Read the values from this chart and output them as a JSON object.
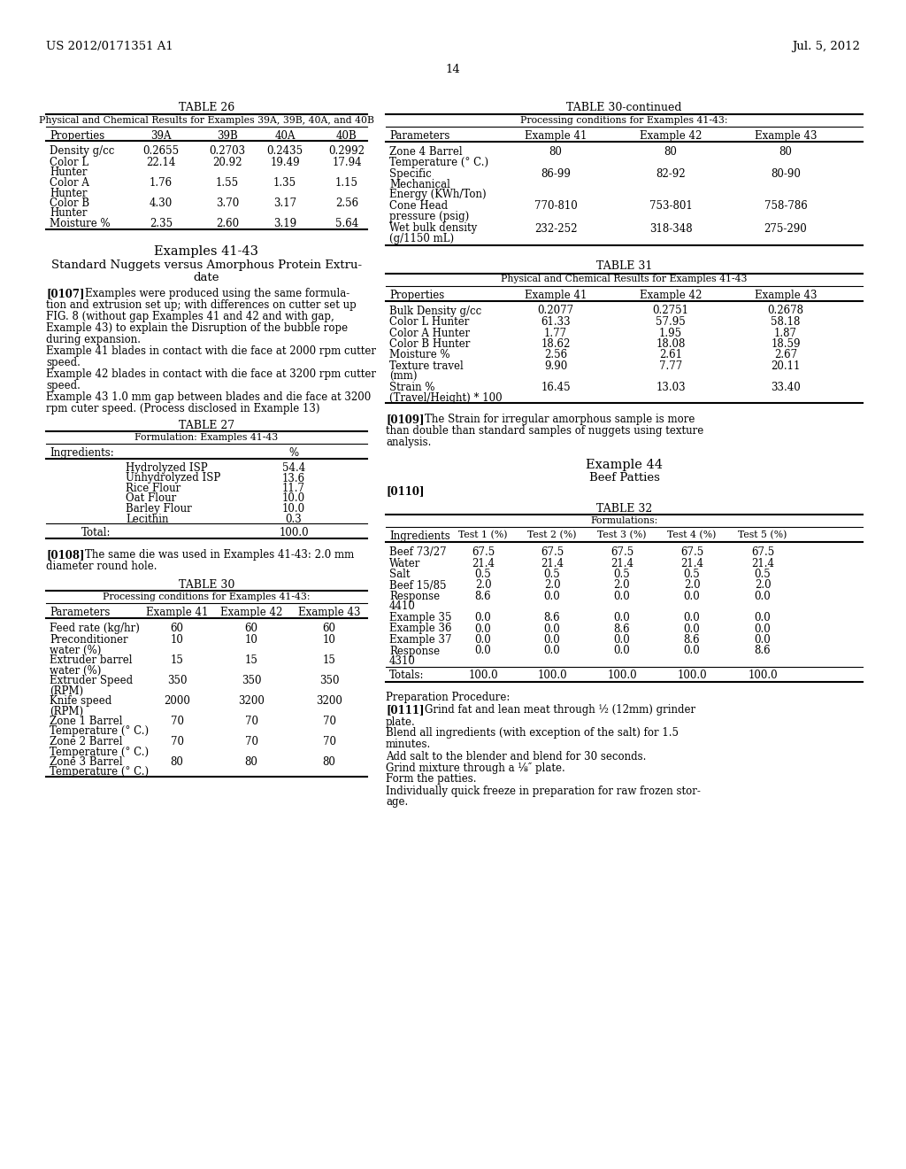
{
  "header_left": "US 2012/0171351 A1",
  "header_right": "Jul. 5, 2012",
  "page_number": "14",
  "background_color": "#ffffff",
  "text_color": "#000000",
  "table26_title": "TABLE 26",
  "table26_subtitle": "Physical and Chemical Results for Examples 39A, 39B, 40A, and 40B",
  "table26_headers": [
    "Properties",
    "39A",
    "39B",
    "40A",
    "40B"
  ],
  "table26_rows": [
    [
      "Density g/cc",
      "0.2655",
      "0.2703",
      "0.2435",
      "0.2992"
    ],
    [
      "Color L\nHunter",
      "22.14",
      "20.92",
      "19.49",
      "17.94"
    ],
    [
      "Color A\nHunter",
      "1.76",
      "1.55",
      "1.35",
      "1.15"
    ],
    [
      "Color B\nHunter",
      "4.30",
      "3.70",
      "3.17",
      "2.56"
    ],
    [
      "Moisture %",
      "2.35",
      "2.60",
      "3.19",
      "5.64"
    ]
  ],
  "section_title": "Examples 41-43",
  "section_subtitle": "Standard Nuggets versus Amorphous Protein Extru-\ndate",
  "para107_label": "[0107]",
  "para107_text": "Examples were produced using the same formula-\ntion and extrusion set up; with differences on cutter set up\nFIG. 8 (without gap Examples 41 and 42 and with gap,\nExample 43) to explain the Disruption of the bubble rope\nduring expansion.\nExample 41 blades in contact with die face at 2000 rpm cutter\nspeed.\nExample 42 blades in contact with die face at 3200 rpm cutter\nspeed.\nExample 43 1.0 mm gap between blades and die face at 3200\nrpm cuter speed. (Process disclosed in Example 13)",
  "table27_title": "TABLE 27",
  "table27_subtitle": "Formulation: Examples 41-43",
  "table27_headers": [
    "Ingredients:",
    "%"
  ],
  "table27_rows": [
    [
      "Hydrolyzed ISP",
      "54.4"
    ],
    [
      "Unhydrolyzed ISP",
      "13.6"
    ],
    [
      "Rice Flour",
      "11.7"
    ],
    [
      "Oat Flour",
      "10.0"
    ],
    [
      "Barley Flour",
      "10.0"
    ],
    [
      "Lecithin",
      "0.3"
    ]
  ],
  "table27_total": [
    "Total:",
    "100.0"
  ],
  "para108_label": "[0108]",
  "para108_text": "The same die was used in Examples 41-43: 2.0 mm\ndiameter round hole.",
  "table30_title": "TABLE 30",
  "table30_subtitle": "Processing conditions for Examples 41-43:",
  "table30_headers": [
    "Parameters",
    "Example 41",
    "Example 42",
    "Example 43"
  ],
  "table30_rows": [
    [
      "Feed rate (kg/hr)",
      "60",
      "60",
      "60"
    ],
    [
      "Preconditioner\nwater (%)",
      "10",
      "10",
      "10"
    ],
    [
      "Extruder barrel\nwater (%)",
      "15",
      "15",
      "15"
    ],
    [
      "Extruder Speed\n(RPM)",
      "350",
      "350",
      "350"
    ],
    [
      "Knife speed\n(RPM)",
      "2000",
      "3200",
      "3200"
    ],
    [
      "Zone 1 Barrel\nTemperature (° C.)",
      "70",
      "70",
      "70"
    ],
    [
      "Zone 2 Barrel\nTemperature (° C.)",
      "70",
      "70",
      "70"
    ],
    [
      "Zone 3 Barrel\nTemperature (° C.)",
      "80",
      "80",
      "80"
    ]
  ],
  "table30cont_title": "TABLE 30-continued",
  "table30cont_subtitle": "Processing conditions for Examples 41-43:",
  "table30cont_headers": [
    "Parameters",
    "Example 41",
    "Example 42",
    "Example 43"
  ],
  "table30cont_rows": [
    [
      "Zone 4 Barrel\nTemperature (° C.)",
      "80",
      "80",
      "80"
    ],
    [
      "Specific\nMechanical\nEnergy (KWh/Ton)",
      "86-99",
      "82-92",
      "80-90"
    ],
    [
      "Cone Head\npressure (psig)",
      "770-810",
      "753-801",
      "758-786"
    ],
    [
      "Wet bulk density\n(g/1150 mL)",
      "232-252",
      "318-348",
      "275-290"
    ]
  ],
  "table31_title": "TABLE 31",
  "table31_subtitle": "Physical and Chemical Results for Examples 41-43",
  "table31_headers": [
    "Properties",
    "Example 41",
    "Example 42",
    "Example 43"
  ],
  "table31_rows": [
    [
      "Bulk Density g/cc",
      "0.2077",
      "0.2751",
      "0.2678"
    ],
    [
      "Color L Hunter",
      "61.33",
      "57.95",
      "58.18"
    ],
    [
      "Color A Hunter",
      "1.77",
      "1.95",
      "1.87"
    ],
    [
      "Color B Hunter",
      "18.62",
      "18.08",
      "18.59"
    ],
    [
      "Moisture %",
      "2.56",
      "2.61",
      "2.67"
    ],
    [
      "Texture travel\n(mm)",
      "9.90",
      "7.77",
      "20.11"
    ],
    [
      "Strain %\n(Travel/Height) * 100",
      "16.45",
      "13.03",
      "33.40"
    ]
  ],
  "para109_label": "[0109]",
  "para109_text": "The Strain for irregular amorphous sample is more\nthan double than standard samples of nuggets using texture\nanalysis.",
  "example44_title": "Example 44",
  "example44_subtitle": "Beef Patties",
  "para110_label": "[0110]",
  "table32_title": "TABLE 32",
  "table32_subtitle": "Formulations:",
  "table32_headers": [
    "Ingredients",
    "Test 1 (%)",
    "Test 2 (%)",
    "Test 3 (%)",
    "Test 4 (%)",
    "Test 5 (%)"
  ],
  "table32_rows": [
    [
      "Beef 73/27",
      "67.5",
      "67.5",
      "67.5",
      "67.5",
      "67.5"
    ],
    [
      "Water",
      "21.4",
      "21.4",
      "21.4",
      "21.4",
      "21.4"
    ],
    [
      "Salt",
      "0.5",
      "0.5",
      "0.5",
      "0.5",
      "0.5"
    ],
    [
      "Beef 15/85",
      "2.0",
      "2.0",
      "2.0",
      "2.0",
      "2.0"
    ],
    [
      "Response\n4410",
      "8.6",
      "0.0",
      "0.0",
      "0.0",
      "0.0"
    ],
    [
      "Example 35",
      "0.0",
      "8.6",
      "0.0",
      "0.0",
      "0.0"
    ],
    [
      "Example 36",
      "0.0",
      "0.0",
      "8.6",
      "0.0",
      "0.0"
    ],
    [
      "Example 37",
      "0.0",
      "0.0",
      "0.0",
      "8.6",
      "0.0"
    ],
    [
      "Response\n4310",
      "0.0",
      "0.0",
      "0.0",
      "0.0",
      "8.6"
    ]
  ],
  "table32_total": [
    "Totals:",
    "100.0",
    "100.0",
    "100.0",
    "100.0",
    "100.0"
  ],
  "prep_title": "Preparation Procedure:",
  "para111_label": "[0111]",
  "para111_text": "Grind fat and lean meat through ½ (12mm) grinder\nplate.\nBlend all ingredients (with exception of the salt) for 1.5\nminutes.\nAdd salt to the blender and blend for 30 seconds.\nGrind mixture through a ⅛″ plate.\nForm the patties.\nIndividually quick freeze in preparation for raw frozen stor-\nage."
}
